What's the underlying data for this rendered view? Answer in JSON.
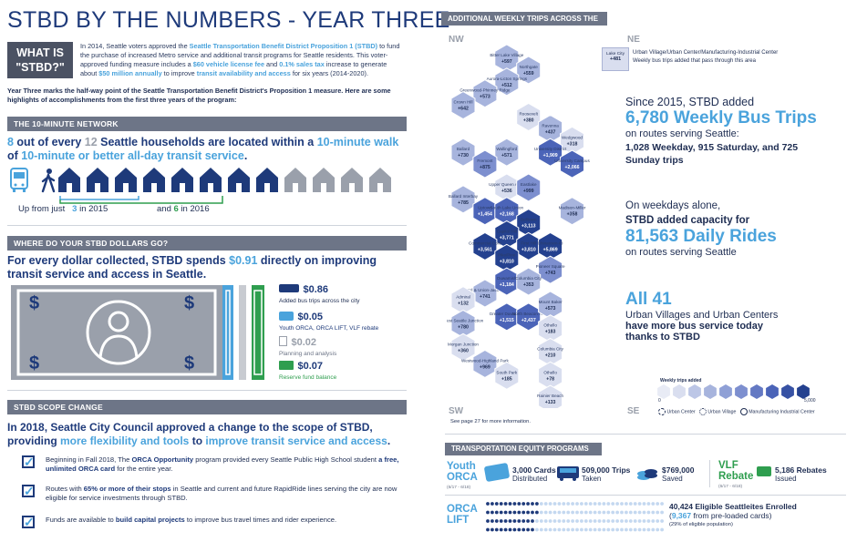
{
  "title": "STBD BY THE NUMBERS - YEAR THREE",
  "what_is": {
    "line1": "WHAT IS",
    "line2": "\"STBD?\""
  },
  "intro": {
    "p1_a": "In 2014, Seattle voters approved the ",
    "p1_b": "Seattle Transportation Benefit District Proposition 1 (STBD)",
    "p1_c": " to fund the purchase of increased Metro service and additional transit programs for Seattle residents. This voter-approved funding measure includes a ",
    "p1_d": "$60 vehicle license fee",
    "p1_e": " and ",
    "p1_f": "0.1% sales tax",
    "p1_g": " increase to generate about ",
    "p1_h": "$50 million annually",
    "p1_i": " to improve ",
    "p1_j": "transit availability and access",
    "p1_k": " for six years (2014-2020).",
    "p2": "Year Three marks the half-way point of the Seattle Transportation Benefit District's Proposition 1 measure. Here are some highlights of accomplishments from the first three years of the program:"
  },
  "network": {
    "header": "THE 10-MINUTE NETWORK",
    "n1": "8",
    "t1": " out of every ",
    "n2": "12",
    "t2": " Seattle households are located within a ",
    "h1": "10-minute walk",
    "t3": "of ",
    "h2": "10-minute or better all-day transit service",
    "t4": ".",
    "up_from": "Up from just",
    "n2015": "3",
    "in2015": "in 2015",
    "n2016": "6",
    "in2016": "in 2016",
    "households_total": 12,
    "households_highlighted": 8
  },
  "dollars": {
    "header": "WHERE DO YOUR STBD DOLLARS GO?",
    "h1": "For every dollar collected, STBD spends ",
    "amt": "$0.91",
    "h2": " directly on improving transit service and access in Seattle.",
    "items": [
      {
        "amount": "$0.86",
        "label": "Added bus trips across the city",
        "color": "#1e3a7a"
      },
      {
        "amount": "$0.05",
        "label": "Youth ORCA, ORCA LIFT, VLF rebate",
        "color": "#4aa3dc"
      },
      {
        "amount": "$0.02",
        "label": "Planning and analysis",
        "color": "#9aa0ab"
      },
      {
        "amount": "$0.07",
        "label": "Reserve fund balance",
        "color": "#2f9e4f"
      }
    ]
  },
  "scope": {
    "header": "STBD SCOPE CHANGE",
    "h1": "In 2018, Seattle City Council approved a change to the scope of STBD,",
    "h2a": "providing ",
    "h2b": "more flexibility and tools",
    "h2c": " to ",
    "h2d": "improve transit service and access",
    "h2e": ".",
    "items": [
      {
        "a": "Beginning in Fall 2018, The ",
        "b": "ORCA Opportunity",
        "c": " program provided every Seattle Public High School student ",
        "d": "a free, unlimited ORCA card",
        "e": " for the entire year."
      },
      {
        "a": "Routes with ",
        "b": "65% or more of their stops",
        "c": " in Seattle and current and future RapidRide lines serving the city are now eligible for service investments through STBD.",
        "d": "",
        "e": ""
      },
      {
        "a": "Funds are available to ",
        "b": "build capital projects",
        "c": " to improve bus travel times and rider experience.",
        "d": "",
        "e": ""
      }
    ]
  },
  "map": {
    "header": "ADDITIONAL WEEKLY TRIPS ACROSS THE CITY",
    "nw": "NW",
    "ne": "NE",
    "sw": "SW",
    "se": "SE",
    "legend_line1": "Urban Village/Urban Center/Manufacturing-Industrial Center",
    "legend_line2": "Weekly bus trips added that pass through this area",
    "legend_name": "Lake City",
    "legend_val": "+481",
    "scale_title": "Weekly trips added",
    "scale_min": "0",
    "scale_max": "5,000",
    "key_center": "Urban Center",
    "key_village": "Urban Village",
    "key_mic": "Manufacturing Industrial Center",
    "see_page": "See page 27 for more information.",
    "hexes": [
      {
        "name": "Bitter Lake Village",
        "val": "+597",
        "c": 1
      },
      {
        "name": "Northgate",
        "val": "+559",
        "c": 1
      },
      {
        "name": "Aurora-Licton Springs",
        "val": "+512",
        "c": 1
      },
      {
        "name": "Greenwood-Phinney Ridge",
        "val": "+573",
        "c": 1
      },
      {
        "name": "Crown Hill",
        "val": "+642",
        "c": 1
      },
      {
        "name": "Roosevelt",
        "val": "+380",
        "c": 0
      },
      {
        "name": "Ravenna",
        "val": "+437",
        "c": 1
      },
      {
        "name": "Wedgwood",
        "val": "+318",
        "c": 0
      },
      {
        "name": "University District",
        "val": "+1,909",
        "c": 3
      },
      {
        "name": "Ballard",
        "val": "+730",
        "c": 1
      },
      {
        "name": "Wallingford",
        "val": "+571",
        "c": 1
      },
      {
        "name": "Fremont",
        "val": "+875",
        "c": 2
      },
      {
        "name": "University Campus",
        "val": "+2,066",
        "c": 3
      },
      {
        "name": "Upper Queen Anne",
        "val": "+536",
        "c": 0
      },
      {
        "name": "Eastlake",
        "val": "+999",
        "c": 2
      },
      {
        "name": "Ballard Interbay",
        "val": "+785",
        "c": 1
      },
      {
        "name": "Uptown",
        "val": "+1,454",
        "c": 3
      },
      {
        "name": "South Lake Union",
        "val": "+2,168",
        "c": 3
      },
      {
        "name": "Madison-Miller",
        "val": "+358",
        "c": 1
      },
      {
        "name": "Belltown",
        "val": "+3,113",
        "c": 4
      },
      {
        "name": "Capitol Hill",
        "val": "+3,771",
        "c": 4
      },
      {
        "name": "Commercial Core",
        "val": "+3,561",
        "c": 4
      },
      {
        "name": "First Hill",
        "val": "+3,810",
        "c": 4
      },
      {
        "name": "Pike/Pine",
        "val": "+3,810",
        "c": 4
      },
      {
        "name": "Chinatown-ID",
        "val": "+5,869",
        "c": 4
      },
      {
        "name": "23rd & Union-Jackson",
        "val": "+741",
        "c": 1
      },
      {
        "name": "Duwamish",
        "val": "+1,184",
        "c": 3
      },
      {
        "name": "Admiral",
        "val": "+132",
        "c": 0
      },
      {
        "name": "Pioneer Square",
        "val": "+743",
        "c": 2
      },
      {
        "name": "Columbia City",
        "val": "+353",
        "c": 1
      },
      {
        "name": "Greater Duwamish",
        "val": "+1,515",
        "c": 3
      },
      {
        "name": "North Beacon Hill",
        "val": "+2,437",
        "c": 3
      },
      {
        "name": "Mount Baker",
        "val": "+573",
        "c": 1
      },
      {
        "name": "West Seattle Junction",
        "val": "+780",
        "c": 1
      },
      {
        "name": "Othello",
        "val": "+183",
        "c": 0
      },
      {
        "name": "Morgan Junction",
        "val": "+360",
        "c": 0
      },
      {
        "name": "Columbia City",
        "val": "+210",
        "c": 0
      },
      {
        "name": "Westwood-Highland Park",
        "val": "+969",
        "c": 1
      },
      {
        "name": "Othello",
        "val": "+78",
        "c": 0
      },
      {
        "name": "South Park",
        "val": "+185",
        "c": 0
      },
      {
        "name": "Rainier Beach",
        "val": "+133",
        "c": 0
      }
    ]
  },
  "stats": {
    "s1_pre": "Since 2015, STBD added",
    "s1_num": "6,780 Weekly Bus Trips",
    "s1_post": "on routes serving Seattle:",
    "s1_detail": "1,028 Weekday, 915 Saturday, and 725 Sunday trips",
    "s2_pre": "On weekdays alone,",
    "s2_mid": "STBD added capacity for",
    "s2_num": "81,563 Daily Rides",
    "s2_post": "on routes serving Seattle",
    "s3_num": "All 41",
    "s3_a": "Urban Villages and Urban Centers",
    "s3_b": "have more bus service today",
    "s3_c": "thanks to STBD"
  },
  "equity": {
    "header": "TRANSPORTATION EQUITY PROGRAMS",
    "youth_a": "Youth",
    "youth_b": "ORCA",
    "youth_range": "(6/17 - 6/18)",
    "cards": "3,000 Cards",
    "cards_sub": "Distributed",
    "trips": "509,000 Trips",
    "trips_sub": "Taken",
    "saved": "$769,000",
    "saved_sub": "Saved",
    "vlf_a": "VLF",
    "vlf_b": "Rebate",
    "vlf_range": "(6/17 - 6/18)",
    "rebates": "5,186 Rebates",
    "rebates_sub": "Issued",
    "lift_a": "ORCA",
    "lift_b": "LIFT",
    "lift_enrolled": "40,424 Eligible Seattleites Enrolled",
    "lift_pre_num": "9,367",
    "lift_pre_text": " from pre-loaded cards)",
    "lift_pre_open": "(",
    "lift_pct": "(29% of eligible population)",
    "lift_share": 0.29
  }
}
